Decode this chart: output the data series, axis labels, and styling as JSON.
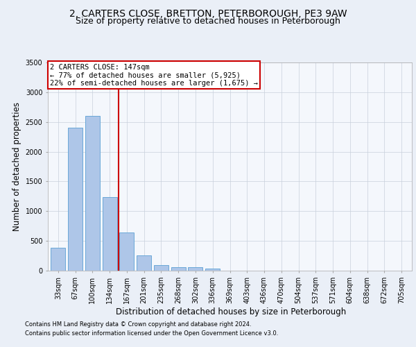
{
  "title_line1": "2, CARTERS CLOSE, BRETTON, PETERBOROUGH, PE3 9AW",
  "title_line2": "Size of property relative to detached houses in Peterborough",
  "xlabel": "Distribution of detached houses by size in Peterborough",
  "ylabel": "Number of detached properties",
  "footer_line1": "Contains HM Land Registry data © Crown copyright and database right 2024.",
  "footer_line2": "Contains public sector information licensed under the Open Government Licence v3.0.",
  "categories": [
    "33sqm",
    "67sqm",
    "100sqm",
    "134sqm",
    "167sqm",
    "201sqm",
    "235sqm",
    "268sqm",
    "302sqm",
    "336sqm",
    "369sqm",
    "403sqm",
    "436sqm",
    "470sqm",
    "504sqm",
    "537sqm",
    "571sqm",
    "604sqm",
    "638sqm",
    "672sqm",
    "705sqm"
  ],
  "values": [
    390,
    2400,
    2600,
    1240,
    640,
    255,
    95,
    60,
    55,
    40,
    0,
    0,
    0,
    0,
    0,
    0,
    0,
    0,
    0,
    0,
    0
  ],
  "bar_color": "#aec6e8",
  "bar_edge_color": "#5a9fd4",
  "vline_x": 3.5,
  "vline_color": "#cc0000",
  "annotation_text": "2 CARTERS CLOSE: 147sqm\n← 77% of detached houses are smaller (5,925)\n22% of semi-detached houses are larger (1,675) →",
  "annotation_box_color": "#cc0000",
  "ylim": [
    0,
    3500
  ],
  "yticks": [
    0,
    500,
    1000,
    1500,
    2000,
    2500,
    3000,
    3500
  ],
  "bg_color": "#eaeff7",
  "plot_bg_color": "#f4f7fc",
  "grid_color": "#c8d0dc",
  "title_fontsize": 10,
  "subtitle_fontsize": 9,
  "tick_fontsize": 7,
  "label_fontsize": 8.5,
  "footer_fontsize": 6,
  "annotation_fontsize": 7.5
}
